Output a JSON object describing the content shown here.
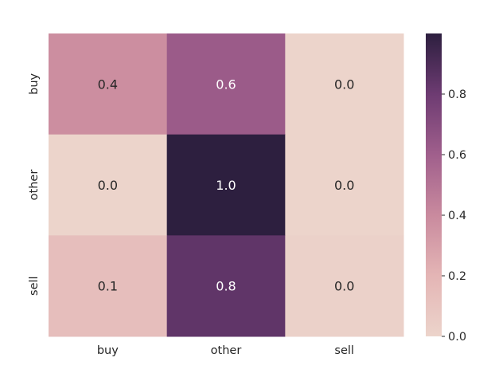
{
  "chart_data": {
    "type": "heatmap",
    "title": "",
    "xlabel": "",
    "ylabel": "",
    "x_categories": [
      "buy",
      "other",
      "sell"
    ],
    "y_categories": [
      "buy",
      "other",
      "sell"
    ],
    "values": [
      [
        0.38,
        0.62,
        0.0
      ],
      [
        0.0,
        1.0,
        0.0
      ],
      [
        0.14,
        0.84,
        0.02
      ]
    ],
    "cell_labels": [
      [
        "0.4",
        "0.6",
        "0.0"
      ],
      [
        "0.0",
        "1.0",
        "0.0"
      ],
      [
        "0.1",
        "0.8",
        "0.0"
      ]
    ],
    "colorbar": {
      "vmin": 0.0,
      "vmax": 1.0,
      "ticks": [
        0.0,
        0.2,
        0.4,
        0.6,
        0.8
      ],
      "tick_labels": [
        "0.0",
        "0.2",
        "0.4",
        "0.6",
        "0.8"
      ],
      "colormap": "cubehelix light (pink to dark purple)",
      "colors": [
        "#ecd4cb",
        "#e4b5b5",
        "#c98a9e",
        "#a05f8c",
        "#6d3b72",
        "#2d1f3f"
      ]
    },
    "grid": false
  }
}
